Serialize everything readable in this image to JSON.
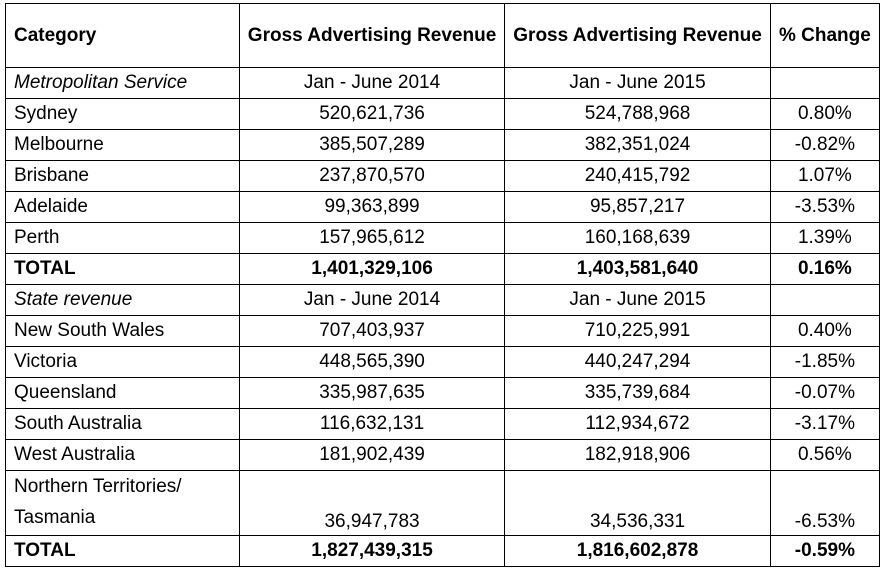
{
  "headers": {
    "category": "Category",
    "col2": "Gross Advertising Revenue",
    "col3": "Gross Advertising Revenue",
    "col4": "% Change"
  },
  "metro": {
    "label": "Metropolitan Service",
    "period1": "Jan - June 2014",
    "period2": "Jan - June 2015",
    "rows": [
      {
        "name": "Sydney",
        "v2014": "520,621,736",
        "v2015": "524,788,968",
        "change": "0.80%"
      },
      {
        "name": "Melbourne",
        "v2014": "385,507,289",
        "v2015": "382,351,024",
        "change": "-0.82%"
      },
      {
        "name": "Brisbane",
        "v2014": "237,870,570",
        "v2015": "240,415,792",
        "change": "1.07%"
      },
      {
        "name": "Adelaide",
        "v2014": "99,363,899",
        "v2015": "95,857,217",
        "change": "-3.53%"
      },
      {
        "name": "Perth",
        "v2014": "157,965,612",
        "v2015": "160,168,639",
        "change": "1.39%"
      }
    ],
    "total": {
      "name": "TOTAL",
      "v2014": "1,401,329,106",
      "v2015": "1,403,581,640",
      "change": "0.16%"
    }
  },
  "state": {
    "label": "State revenue",
    "period1": "Jan - June 2014",
    "period2": "Jan - June 2015",
    "rows": [
      {
        "name": "New South Wales",
        "v2014": "707,403,937",
        "v2015": "710,225,991",
        "change": "0.40%"
      },
      {
        "name": "Victoria",
        "v2014": "448,565,390",
        "v2015": "440,247,294",
        "change": "-1.85%"
      },
      {
        "name": "Queensland",
        "v2014": "335,987,635",
        "v2015": "335,739,684",
        "change": "-0.07%"
      },
      {
        "name": "South Australia",
        "v2014": "116,632,131",
        "v2015": "112,934,672",
        "change": "-3.17%"
      },
      {
        "name": "West Australia",
        "v2014": "181,902,439",
        "v2015": "182,918,906",
        "change": "0.56%"
      },
      {
        "name": "Northern Territories/ Tasmania",
        "v2014": "36,947,783",
        "v2015": "34,536,331",
        "change": "-6.53%"
      }
    ],
    "total": {
      "name": "TOTAL",
      "v2014": "1,827,439,315",
      "v2015": "1,816,602,878",
      "change": "-0.59%"
    }
  }
}
